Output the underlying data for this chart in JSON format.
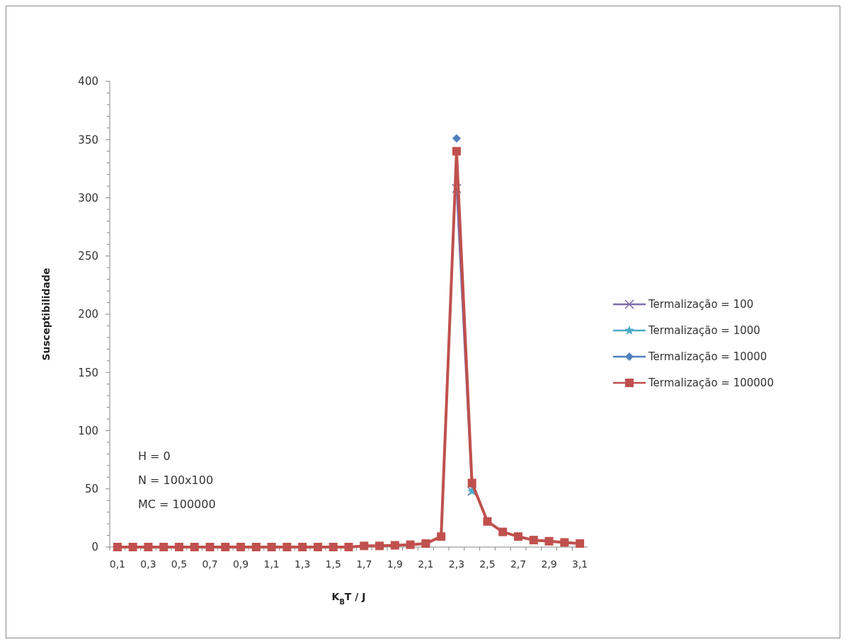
{
  "chart_data": {
    "type": "line",
    "xlabel": "K$_{B}$T / J",
    "ylabel": "Susceptibilidade",
    "categories": [
      "0,1",
      null,
      "0,3",
      null,
      "0,5",
      null,
      "0,7",
      null,
      "0,9",
      null,
      "1,1",
      null,
      "1,3",
      null,
      "1,5",
      null,
      "1,7",
      null,
      "1,9",
      null,
      "2,1",
      null,
      "2,3",
      null,
      "2,5",
      null,
      "2,7",
      null,
      "2,9",
      null,
      "3,1"
    ],
    "series": [
      {
        "name": "Termalização = 100",
        "color": "#7e6ca8",
        "marker": "cross",
        "values": [
          null,
          null,
          null,
          null,
          null,
          null,
          null,
          null,
          null,
          null,
          null,
          null,
          null,
          null,
          null,
          null,
          null,
          null,
          null,
          null,
          null,
          null,
          308,
          48,
          null,
          null,
          null,
          null,
          null,
          null,
          null
        ]
      },
      {
        "name": "Termalização = 1000",
        "color": "#4bacc6",
        "marker": "star",
        "values": [
          null,
          null,
          null,
          null,
          null,
          null,
          null,
          null,
          null,
          null,
          null,
          null,
          null,
          null,
          null,
          null,
          null,
          null,
          null,
          null,
          null,
          null,
          null,
          48,
          null,
          null,
          null,
          null,
          null,
          null,
          null
        ]
      },
      {
        "name": "Termalização = 10000",
        "color": "#4f81bd",
        "marker": "diamond",
        "values": [
          null,
          null,
          null,
          null,
          null,
          null,
          null,
          null,
          null,
          null,
          null,
          null,
          null,
          null,
          null,
          null,
          null,
          null,
          null,
          null,
          null,
          null,
          351,
          null,
          null,
          null,
          null,
          null,
          null,
          null,
          null
        ]
      },
      {
        "name": "Termalização = 100000",
        "color": "#c0504d",
        "marker": "square",
        "values": [
          0,
          0,
          0,
          0,
          0,
          0,
          0,
          0,
          0,
          0,
          0,
          0,
          0,
          0,
          0,
          0,
          1,
          1,
          1.5,
          2,
          3,
          9,
          340,
          55,
          22,
          13,
          9,
          6,
          5,
          4,
          3
        ]
      }
    ],
    "ylim": [
      0,
      400
    ],
    "yticks": [
      0,
      {
        "value": 10,
        "label": null
      },
      {
        "value": 20,
        "label": null
      },
      {
        "value": 30,
        "label": null
      },
      {
        "value": 40,
        "label": null
      },
      50,
      {
        "value": 60,
        "label": null
      },
      {
        "value": 70,
        "label": null
      },
      {
        "value": 80,
        "label": null
      },
      {
        "value": 90,
        "label": null
      },
      100,
      {
        "value": 110,
        "label": null
      },
      {
        "value": 120,
        "label": null
      },
      {
        "value": 130,
        "label": null
      },
      {
        "value": 140,
        "label": null
      },
      150,
      {
        "value": 160,
        "label": null
      },
      {
        "value": 170,
        "label": null
      },
      {
        "value": 180,
        "label": null
      },
      {
        "value": 190,
        "label": null
      },
      200,
      {
        "value": 210,
        "label": null
      },
      {
        "value": 220,
        "label": null
      },
      {
        "value": 230,
        "label": null
      },
      {
        "value": 240,
        "label": null
      },
      250,
      {
        "value": 260,
        "label": null
      },
      {
        "value": 270,
        "label": null
      },
      {
        "value": 280,
        "label": null
      },
      {
        "value": 290,
        "label": null
      },
      300,
      {
        "value": 310,
        "label": null
      },
      {
        "value": 320,
        "label": null
      },
      {
        "value": 330,
        "label": null
      },
      {
        "value": 340,
        "label": null
      },
      350,
      {
        "value": 360,
        "label": null
      },
      {
        "value": 370,
        "label": null
      },
      {
        "value": 380,
        "label": null
      },
      {
        "value": 390,
        "label": null
      },
      400
    ],
    "annotations": [
      "H = 0",
      "N = 100x100",
      "MC = 100000"
    ],
    "legend": "right",
    "grid": false
  }
}
